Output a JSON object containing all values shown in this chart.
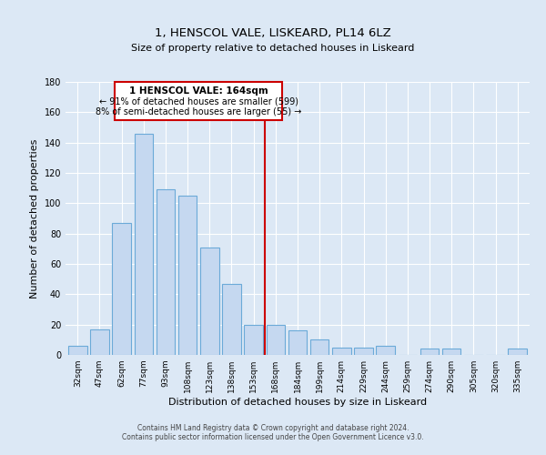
{
  "title": "1, HENSCOL VALE, LISKEARD, PL14 6LZ",
  "subtitle": "Size of property relative to detached houses in Liskeard",
  "xlabel": "Distribution of detached houses by size in Liskeard",
  "ylabel": "Number of detached properties",
  "bar_labels": [
    "32sqm",
    "47sqm",
    "62sqm",
    "77sqm",
    "93sqm",
    "108sqm",
    "123sqm",
    "138sqm",
    "153sqm",
    "168sqm",
    "184sqm",
    "199sqm",
    "214sqm",
    "229sqm",
    "244sqm",
    "259sqm",
    "274sqm",
    "290sqm",
    "305sqm",
    "320sqm",
    "335sqm"
  ],
  "bar_values": [
    6,
    17,
    87,
    146,
    109,
    105,
    71,
    47,
    20,
    20,
    16,
    10,
    5,
    5,
    6,
    0,
    4,
    4,
    0,
    0,
    4
  ],
  "bar_color": "#c5d8f0",
  "bar_edge_color": "#6baad8",
  "vline_color": "#cc0000",
  "annotation_title": "1 HENSCOL VALE: 164sqm",
  "annotation_line1": "← 91% of detached houses are smaller (599)",
  "annotation_line2": "8% of semi-detached houses are larger (55) →",
  "annotation_box_color": "#ffffff",
  "annotation_box_edge": "#cc0000",
  "ylim": [
    0,
    180
  ],
  "yticks": [
    0,
    20,
    40,
    60,
    80,
    100,
    120,
    140,
    160,
    180
  ],
  "footer_line1": "Contains HM Land Registry data © Crown copyright and database right 2024.",
  "footer_line2": "Contains public sector information licensed under the Open Government Licence v3.0.",
  "background_color": "#dce8f5",
  "plot_background_color": "#dce8f5"
}
